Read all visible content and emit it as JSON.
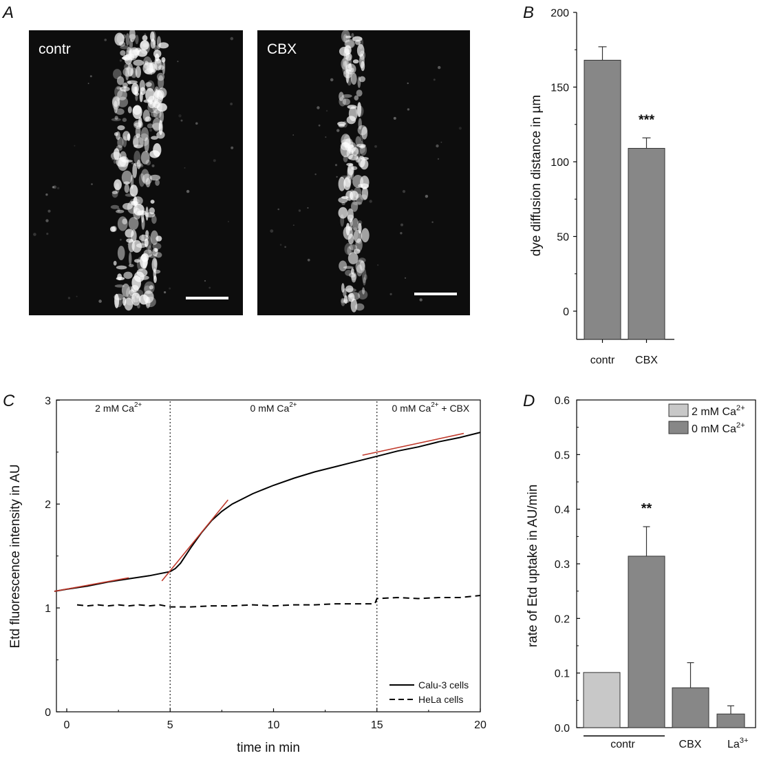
{
  "panels": {
    "A": "A",
    "B": "B",
    "C": "C",
    "D": "D"
  },
  "images": [
    {
      "label": "contr",
      "description": "fluorescence micrograph, bright band of labelled cells along a vertical line"
    },
    {
      "label": "CBX",
      "description": "fluorescence micrograph, narrower band of labelled cells"
    }
  ],
  "chart_data": [
    {
      "id": "B",
      "type": "bar",
      "categories": [
        "contr",
        "CBX"
      ],
      "values": [
        168,
        109
      ],
      "errors": [
        9,
        7
      ],
      "ylabel": "dye diffusion distance in µm",
      "xlabel": "",
      "ylim": [
        -20,
        200
      ],
      "yticks": [
        0,
        50,
        100,
        150,
        200
      ],
      "annotations": [
        {
          "category": "CBX",
          "text": "***"
        }
      ],
      "colors": {
        "bar": "#878787"
      }
    },
    {
      "id": "C",
      "type": "line",
      "xlabel": "time in min",
      "ylabel": "Etd fluorescence intensity in AU",
      "xlim": [
        -0.6,
        20
      ],
      "ylim": [
        0,
        3
      ],
      "xticks": [
        0,
        5,
        10,
        15,
        20
      ],
      "yticks": [
        0,
        1,
        2,
        3
      ],
      "vlines": [
        5,
        15
      ],
      "phase_labels": [
        {
          "x": 2.5,
          "base": "2 mM Ca",
          "sup": "2+",
          "tail": ""
        },
        {
          "x": 10,
          "base": "0 mM Ca",
          "sup": "2+",
          "tail": ""
        },
        {
          "x": 17.6,
          "base": "0 mM Ca",
          "sup": "2+",
          "tail": " + CBX"
        }
      ],
      "series": [
        {
          "name": "Calu-3 cells",
          "style": "solid",
          "x": [
            -0.6,
            0,
            1,
            2,
            3,
            4,
            4.5,
            5,
            5.25,
            5.5,
            6,
            6.5,
            7,
            7.5,
            8,
            9,
            10,
            11,
            12,
            13,
            14,
            15,
            16,
            17,
            18,
            19,
            20
          ],
          "y": [
            1.16,
            1.18,
            1.21,
            1.25,
            1.28,
            1.31,
            1.33,
            1.35,
            1.38,
            1.43,
            1.58,
            1.72,
            1.84,
            1.93,
            2.0,
            2.1,
            2.18,
            2.25,
            2.31,
            2.36,
            2.41,
            2.46,
            2.51,
            2.55,
            2.6,
            2.64,
            2.69
          ]
        },
        {
          "name": "HeLa cells",
          "style": "dashed",
          "x": [
            0.5,
            1,
            1.5,
            2,
            2.5,
            3,
            3.5,
            4,
            4.5,
            5,
            6,
            7,
            8,
            9,
            10,
            11,
            12,
            13,
            14,
            14.9,
            15,
            16,
            17,
            18,
            19,
            20
          ],
          "y": [
            1.03,
            1.02,
            1.03,
            1.02,
            1.03,
            1.02,
            1.03,
            1.02,
            1.03,
            1.01,
            1.01,
            1.02,
            1.02,
            1.03,
            1.02,
            1.03,
            1.03,
            1.04,
            1.04,
            1.04,
            1.09,
            1.1,
            1.09,
            1.1,
            1.1,
            1.12
          ]
        }
      ],
      "fits": [
        {
          "x": [
            -0.6,
            3
          ],
          "y": [
            1.16,
            1.29
          ]
        },
        {
          "x": [
            4.6,
            7.8
          ],
          "y": [
            1.26,
            2.04
          ]
        },
        {
          "x": [
            14.3,
            19.2
          ],
          "y": [
            2.47,
            2.68
          ]
        }
      ],
      "legend": {
        "position": "bottom-right"
      },
      "colors": {
        "line": "#000000",
        "fit": "#c0392b"
      }
    },
    {
      "id": "D",
      "type": "bar",
      "categories": [
        "contr",
        "contr",
        "CBX",
        "La"
      ],
      "category_labels": [
        "contr",
        "CBX"
      ],
      "la_label": {
        "base": "La",
        "sup": "3+"
      },
      "values": [
        0.101,
        0.314,
        0.073,
        0.025
      ],
      "errors": [
        null,
        0.054,
        0.046,
        0.015
      ],
      "groups": [
        "2 mM Ca2+",
        "0 mM Ca2+",
        "0 mM Ca2+",
        "0 mM Ca2+"
      ],
      "ylabel": "rate of Etd uptake in AU/min",
      "xlabel": "",
      "ylim": [
        0,
        0.6
      ],
      "yticks": [
        0.0,
        0.1,
        0.2,
        0.3,
        0.4,
        0.5,
        0.6
      ],
      "ytick_labels": [
        "0.0",
        "0.1",
        "0.2",
        "0.3",
        "0.4",
        "0.5",
        "0.6"
      ],
      "annotations": [
        {
          "bar": 1,
          "text": "**"
        }
      ],
      "legend": [
        {
          "base": "2 mM Ca",
          "sup": "2+",
          "color": "#c8c8c8"
        },
        {
          "base": "0 mM Ca",
          "sup": "2+",
          "color": "#878787"
        }
      ],
      "legend_position": "top-right"
    }
  ]
}
